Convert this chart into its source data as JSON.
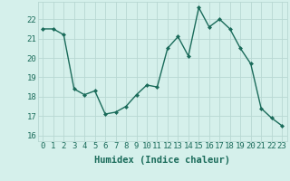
{
  "x": [
    0,
    1,
    2,
    3,
    4,
    5,
    6,
    7,
    8,
    9,
    10,
    11,
    12,
    13,
    14,
    15,
    16,
    17,
    18,
    19,
    20,
    21,
    22,
    23
  ],
  "y": [
    21.5,
    21.5,
    21.2,
    18.4,
    18.1,
    18.3,
    17.1,
    17.2,
    17.5,
    18.1,
    18.6,
    18.5,
    20.5,
    21.1,
    20.1,
    22.6,
    21.6,
    22.0,
    21.5,
    20.5,
    19.7,
    17.4,
    16.9,
    16.5
  ],
  "xlabel": "Humidex (Indice chaleur)",
  "xlim": [
    -0.5,
    23.5
  ],
  "ylim": [
    15.7,
    22.9
  ],
  "yticks": [
    16,
    17,
    18,
    19,
    20,
    21,
    22
  ],
  "xticks": [
    0,
    1,
    2,
    3,
    4,
    5,
    6,
    7,
    8,
    9,
    10,
    11,
    12,
    13,
    14,
    15,
    16,
    17,
    18,
    19,
    20,
    21,
    22,
    23
  ],
  "line_color": "#1a6b5a",
  "marker": "D",
  "marker_size": 2.0,
  "line_width": 1.0,
  "bg_color": "#d5f0eb",
  "grid_color": "#b8d8d2",
  "tick_color": "#1a6b5a",
  "label_color": "#1a6b5a",
  "xlabel_fontsize": 7.5,
  "tick_fontsize": 6.5
}
